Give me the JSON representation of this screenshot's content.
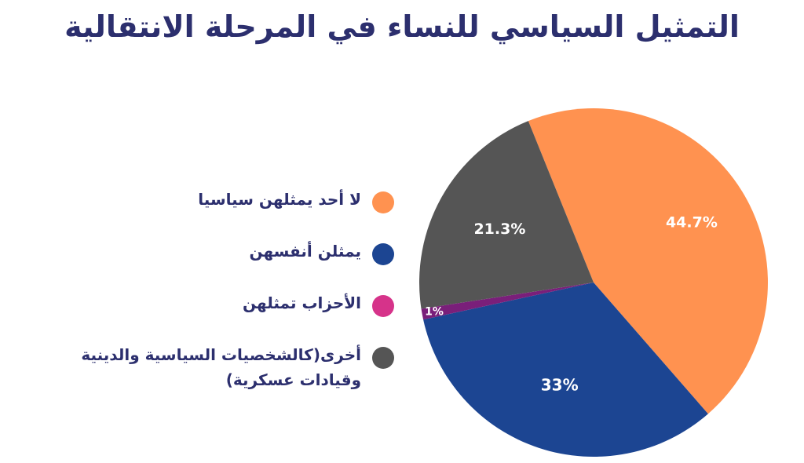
{
  "colors": {
    "title": "#2c2f6e",
    "text": "#2c2f6e",
    "labels": "#ffffff"
  },
  "chart_data": {
    "type": "pie",
    "title": "التمثيل السياسي للنساء في المرحلة الانتقالية",
    "categories": [
      "لا أحد يمثلهن سياسيا",
      "يمثلن أنفسهن",
      "الأحزاب تمثلهن",
      "أخرى(كالشخصيات السياسية والدينية وقيادات عسكرية)"
    ],
    "values": [
      44.7,
      33,
      1,
      21.3
    ],
    "value_labels": [
      "44.7%",
      "33%",
      "1%",
      "21.3%"
    ],
    "colors": [
      "#ff9250",
      "#1c4592",
      "#7a1f7a",
      "#555555"
    ],
    "legend_colors": [
      "#ff9250",
      "#1c4592",
      "#d6338a",
      "#555555"
    ],
    "legend_position": "left"
  }
}
